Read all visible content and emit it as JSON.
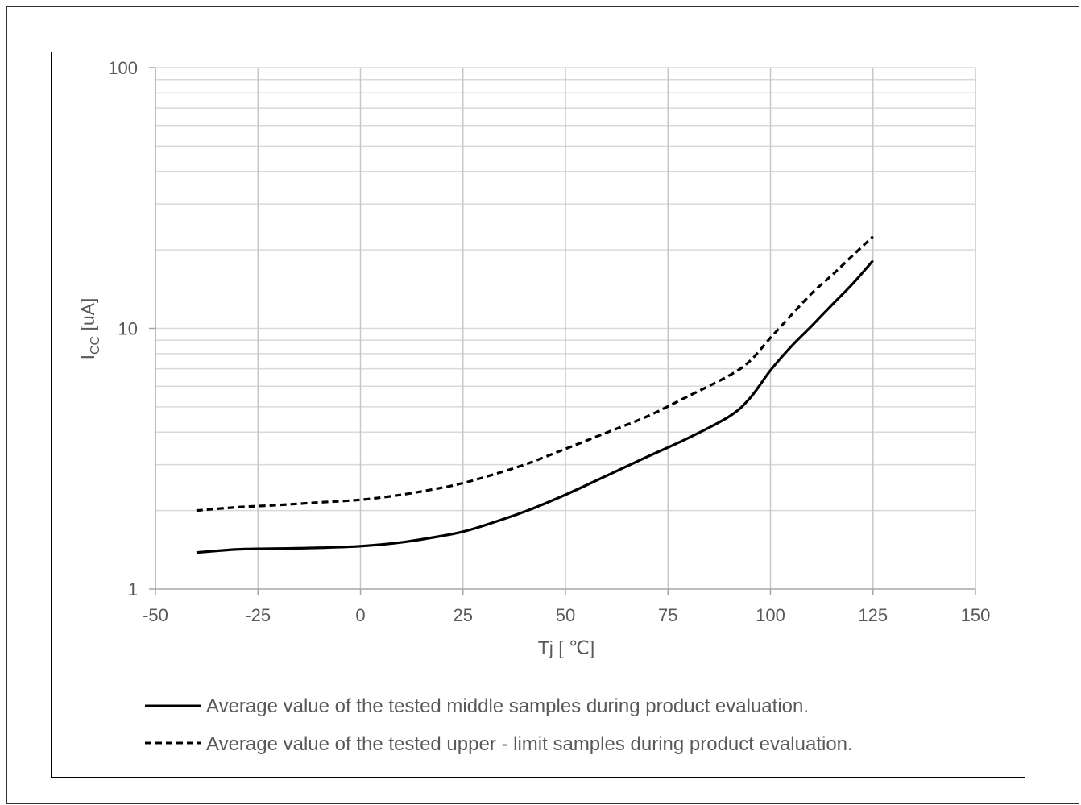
{
  "chart_data": {
    "type": "line",
    "xlabel_main": "Tj [",
    "xlabel_unit": "℃",
    "xlabel_close": "]",
    "ylabel_main": "I",
    "ylabel_sub": "CC",
    "ylabel_unit": " [uA]",
    "xlim": [
      -50,
      150
    ],
    "ylim": [
      1,
      100
    ],
    "yscale": "log",
    "grid": true,
    "legend_position": "bottom",
    "x_ticks": [
      "-50",
      "-25",
      "0",
      "25",
      "50",
      "75",
      "100",
      "125",
      "150"
    ],
    "x_tick_values": [
      -50,
      -25,
      0,
      25,
      50,
      75,
      100,
      125,
      150
    ],
    "y_ticks": [
      "1",
      "10",
      "100"
    ],
    "y_tick_values": [
      1,
      10,
      100
    ],
    "series": [
      {
        "name": "Average value of the tested middle samples during product evaluation.",
        "style": "solid",
        "color": "#000000",
        "x": [
          -40,
          -30,
          -20,
          -10,
          0,
          10,
          20,
          25,
          30,
          40,
          50,
          60,
          70,
          80,
          90,
          95,
          100,
          105,
          110,
          115,
          120,
          125
        ],
        "y": [
          1.38,
          1.42,
          1.43,
          1.44,
          1.46,
          1.51,
          1.6,
          1.66,
          1.75,
          1.98,
          2.3,
          2.72,
          3.22,
          3.8,
          4.6,
          5.4,
          6.9,
          8.5,
          10.2,
          12.3,
          14.8,
          18.2
        ]
      },
      {
        "name": "Average value of the tested upper - limit samples during product evaluation.",
        "style": "dashed",
        "color": "#000000",
        "x": [
          -40,
          -30,
          -20,
          -10,
          0,
          10,
          20,
          25,
          30,
          40,
          50,
          60,
          70,
          80,
          90,
          95,
          100,
          105,
          110,
          115,
          120,
          125
        ],
        "y": [
          2.0,
          2.06,
          2.1,
          2.15,
          2.2,
          2.3,
          2.45,
          2.55,
          2.68,
          3.0,
          3.45,
          3.98,
          4.6,
          5.5,
          6.6,
          7.5,
          9.2,
          11.2,
          13.6,
          16.0,
          19.0,
          22.5
        ]
      }
    ]
  }
}
